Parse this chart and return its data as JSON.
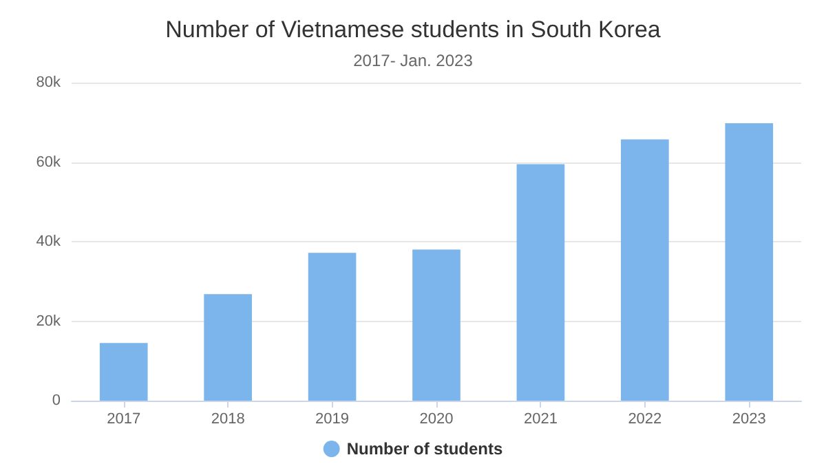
{
  "chart_data": {
    "type": "bar",
    "title": "Number of Vietnamese students in South Korea",
    "subtitle": "2017- Jan. 2023",
    "categories": [
      "2017",
      "2018",
      "2019",
      "2020",
      "2021",
      "2022",
      "2023"
    ],
    "series": [
      {
        "name": "Number of students",
        "color": "#7cb5ec",
        "values": [
          14500,
          26800,
          37200,
          38000,
          59500,
          65700,
          69800
        ]
      }
    ],
    "ylim": [
      0,
      80000
    ],
    "yticks": [
      {
        "value": 0,
        "label": "0"
      },
      {
        "value": 20000,
        "label": "20k"
      },
      {
        "value": 40000,
        "label": "40k"
      },
      {
        "value": 60000,
        "label": "60k"
      },
      {
        "value": 80000,
        "label": "80k"
      }
    ],
    "grid": "y",
    "legend": "bottom"
  }
}
